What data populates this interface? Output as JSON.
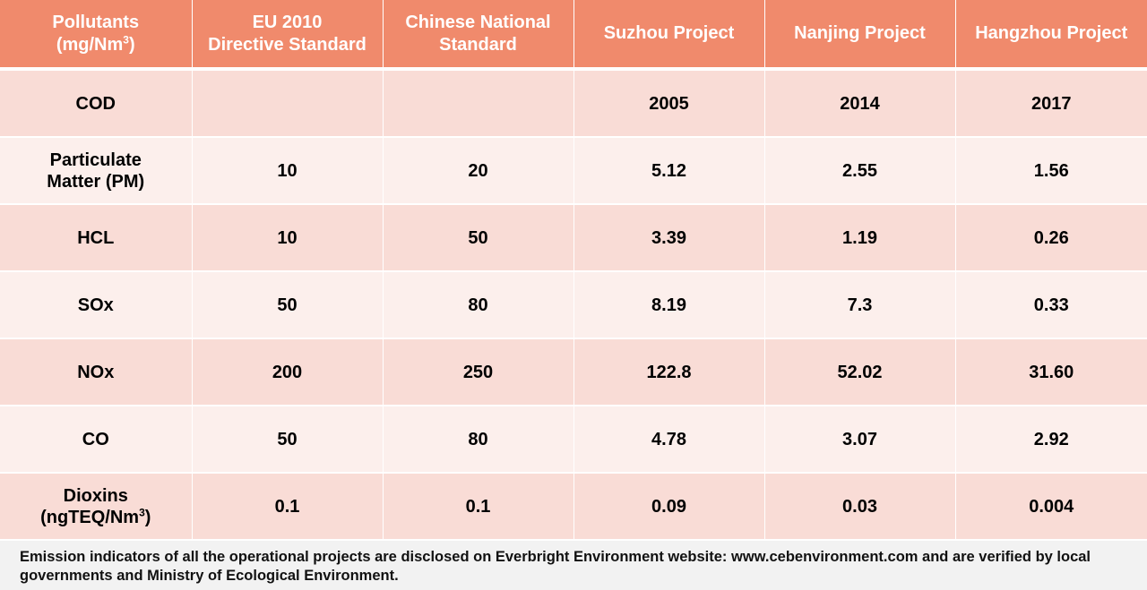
{
  "header": {
    "col0_line1": "Pollutants",
    "col0_line2_pre": "(mg/Nm",
    "col0_line2_sup": "3",
    "col0_line2_post": ")",
    "col1_line1": "EU 2010",
    "col1_line2": "Directive Standard",
    "col2_line1": "Chinese National",
    "col2_line2": "Standard",
    "col3": "Suzhou Project",
    "col4": "Nanjing Project",
    "col5": "Hangzhou Project"
  },
  "rows": [
    {
      "name": "COD",
      "eu": "",
      "cn": "",
      "suzhou": "2005",
      "nanjing": "2014",
      "hangzhou": "2017"
    },
    {
      "name_line1": "Particulate",
      "name_line2": "Matter (PM)",
      "eu": "10",
      "cn": "20",
      "suzhou": "5.12",
      "nanjing": "2.55",
      "hangzhou": "1.56"
    },
    {
      "name": "HCL",
      "eu": "10",
      "cn": "50",
      "suzhou": "3.39",
      "nanjing": "1.19",
      "hangzhou": "0.26"
    },
    {
      "name": "SOx",
      "eu": "50",
      "cn": "80",
      "suzhou": "8.19",
      "nanjing": "7.3",
      "hangzhou": "0.33"
    },
    {
      "name": "NOx",
      "eu": "200",
      "cn": "250",
      "suzhou": "122.8",
      "nanjing": "52.02",
      "hangzhou": "31.60"
    },
    {
      "name": "CO",
      "eu": "50",
      "cn": "80",
      "suzhou": "4.78",
      "nanjing": "3.07",
      "hangzhou": "2.92"
    },
    {
      "name_line1": "Dioxins",
      "name_line2_pre": "(ngTEQ/Nm",
      "name_line2_sup": "3",
      "name_line2_post": ")",
      "eu": "0.1",
      "cn": "0.1",
      "suzhou": "0.09",
      "nanjing": "0.03",
      "hangzhou": "0.004"
    }
  ],
  "footnote": "Emission indicators of all the operational projects are disclosed on Everbright Environment website: www.cebenvironment.com and are verified by local governments and Ministry of Ecological Environment.",
  "colors": {
    "header_bg": "#f08a6c",
    "row_dark": "#f9dcd6",
    "row_light": "#fcefec"
  }
}
